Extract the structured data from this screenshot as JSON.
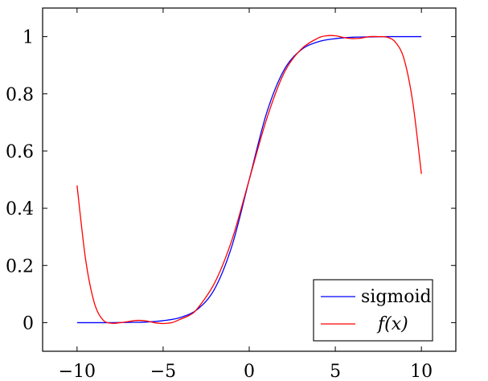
{
  "chart_data": {
    "type": "line",
    "title": "",
    "xlabel": "",
    "ylabel": "",
    "xlim": [
      -12,
      12
    ],
    "ylim": [
      -0.1,
      1.1
    ],
    "x_ticks": [
      -10,
      -5,
      0,
      5,
      10
    ],
    "y_ticks": [
      0,
      0.2,
      0.4,
      0.6,
      0.8,
      1
    ],
    "x_tick_labels": [
      "−10",
      "−5",
      "0",
      "5",
      "10"
    ],
    "y_tick_labels": [
      "0",
      "0.2",
      "0.4",
      "0.6",
      "0.8",
      "1"
    ],
    "grid": false,
    "legend_position": "bottom-right",
    "series": [
      {
        "name": "sigmoid",
        "color": "#0000ff",
        "x": [
          -10,
          -9,
          -8,
          -7,
          -6,
          -5,
          -4,
          -3,
          -2,
          -1,
          0,
          1,
          2,
          3,
          4,
          5,
          6,
          7,
          8,
          9,
          10
        ],
        "y": [
          0.0,
          0.0,
          0.0,
          0.001,
          0.002,
          0.007,
          0.018,
          0.047,
          0.119,
          0.269,
          0.5,
          0.731,
          0.881,
          0.953,
          0.982,
          0.993,
          0.998,
          0.999,
          1.0,
          1.0,
          1.0
        ]
      },
      {
        "name": "f(x)",
        "color": "#ff0000",
        "x": [
          -10,
          -9.5,
          -9,
          -8.5,
          -8,
          -7.5,
          -7,
          -6.5,
          -6,
          -5.5,
          -5,
          -4.5,
          -4,
          -3.5,
          -3,
          -2,
          -1,
          0,
          1,
          2,
          3,
          4,
          4.5,
          5,
          5.5,
          6,
          6.5,
          7,
          7.5,
          8,
          8.5,
          9,
          9.5,
          10
        ],
        "y": [
          0.48,
          0.22,
          0.07,
          0.01,
          -0.002,
          0.0,
          0.004,
          0.008,
          0.006,
          0.0,
          -0.003,
          0.0,
          0.012,
          0.025,
          0.05,
          0.14,
          0.29,
          0.5,
          0.71,
          0.87,
          0.955,
          0.995,
          1.003,
          1.003,
          0.997,
          0.993,
          0.995,
          1.0,
          1.0,
          0.998,
          0.98,
          0.92,
          0.77,
          0.52
        ]
      }
    ]
  },
  "legend": {
    "entries": [
      {
        "label": "sigmoid",
        "color": "#0000ff"
      },
      {
        "label": "f(x)",
        "color": "#ff0000"
      }
    ]
  }
}
